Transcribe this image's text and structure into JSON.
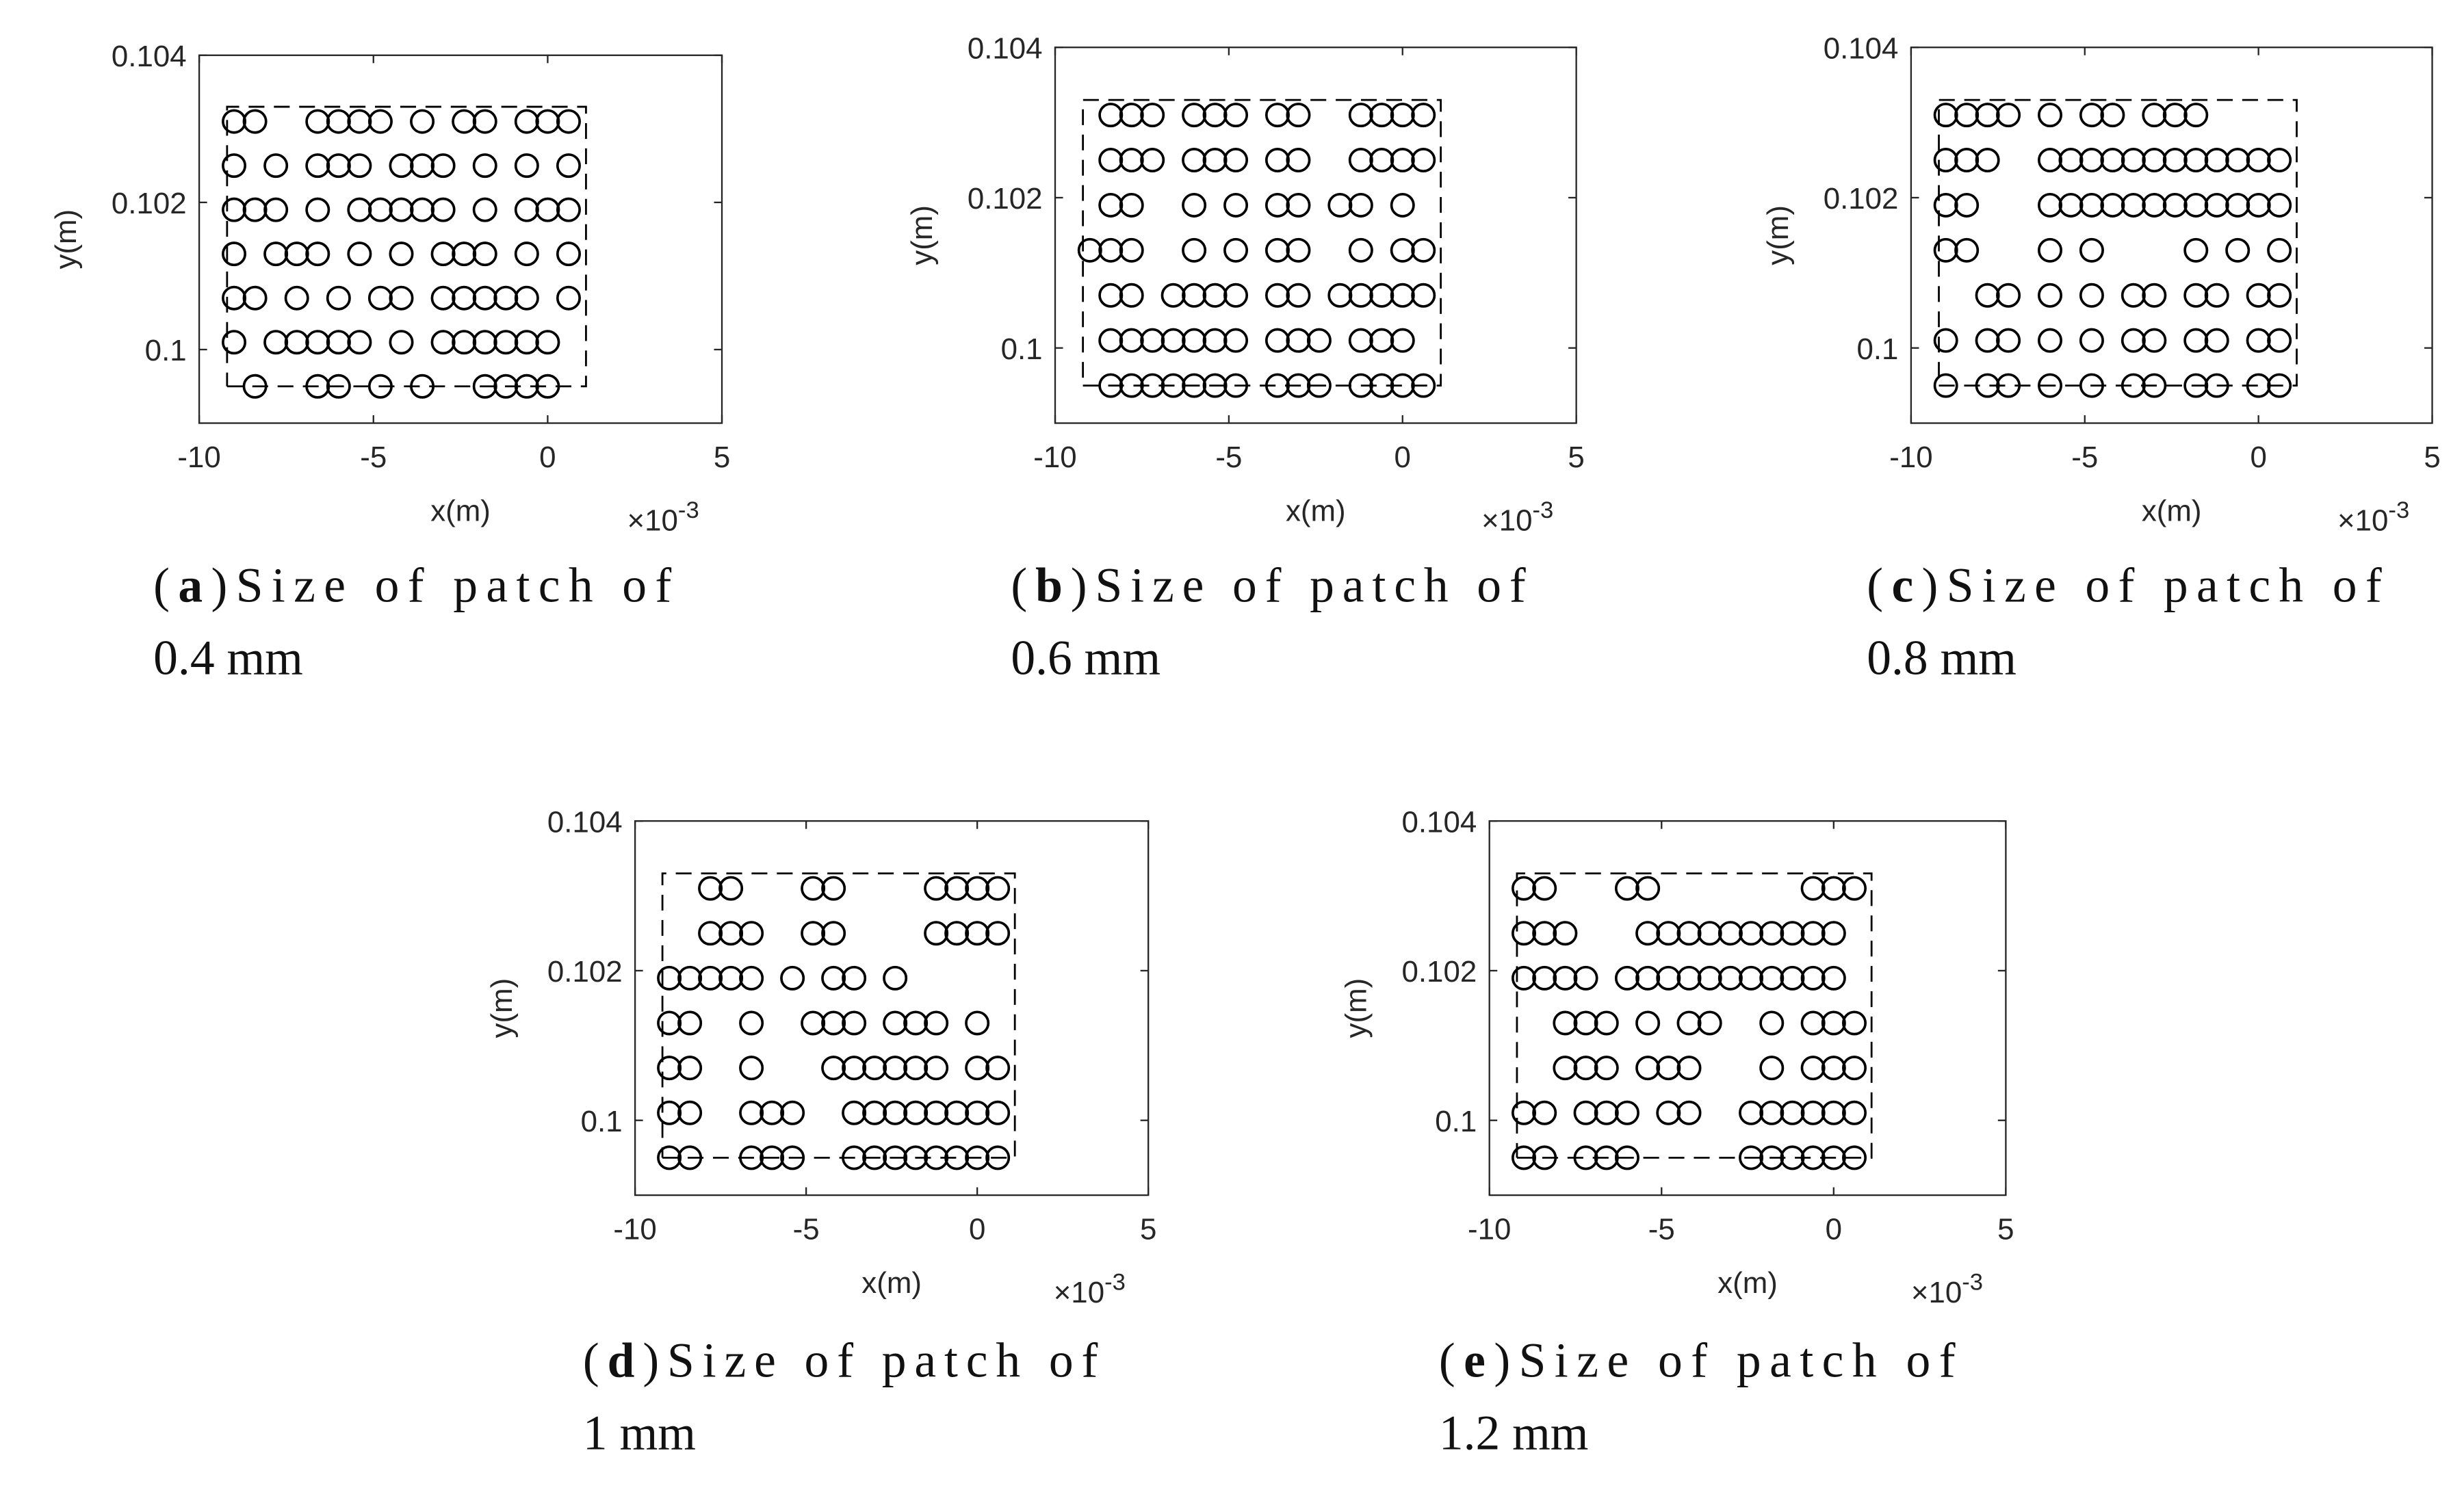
{
  "chart_data": [
    {
      "type": "scatter",
      "xlabel": "x(m)",
      "ylabel": "y(m)",
      "x_multiplier": {
        "base": "×10",
        "exponent": "-3"
      },
      "xlim": [
        -10,
        5
      ],
      "ylim": [
        0.099,
        0.104
      ],
      "xticks": [
        -10,
        -5,
        0,
        5
      ],
      "yticks": [
        0.1,
        0.102,
        0.104
      ],
      "color": "#000000",
      "caption": {
        "open": "(",
        "label": "a",
        "close": ")",
        "lines": [
          "Size of patch of",
          "0.4 mm"
        ]
      },
      "boundary_x": [
        -9.2,
        1.1,
        1.1,
        -9.2,
        -9.2
      ],
      "boundary_y": [
        0.0995,
        0.0995,
        0.1033,
        0.1033,
        0.0995
      ],
      "x": [
        -9,
        -8.4,
        -6.6,
        -6,
        -5.4,
        -4.8,
        -3.6,
        -2.4,
        -1.8,
        -0.6,
        0,
        0.6,
        -9,
        -7.8,
        -6.6,
        -6,
        -5.4,
        -4.2,
        -3.6,
        -3,
        -1.8,
        -0.6,
        0.6,
        -9,
        -8.4,
        -7.8,
        -6.6,
        -5.4,
        -4.8,
        -4.2,
        -3.6,
        -3,
        -1.8,
        -0.6,
        0,
        0.6,
        -9,
        -7.8,
        -7.2,
        -6.6,
        -5.4,
        -4.2,
        -3,
        -2.4,
        -1.8,
        -0.6,
        0.6,
        -9,
        -8.4,
        -7.2,
        -6,
        -4.8,
        -4.2,
        -3,
        -2.4,
        -1.8,
        -1.2,
        -0.6,
        0.6,
        -9,
        -7.8,
        -7.2,
        -6.6,
        -6,
        -5.4,
        -4.2,
        -3,
        -2.4,
        -1.8,
        -1.2,
        -0.6,
        0,
        -8.4,
        -6.6,
        -6,
        -4.8,
        -3.6,
        -1.8,
        -1.2,
        -0.6,
        0
      ],
      "y": [
        0.1031,
        0.1031,
        0.1031,
        0.1031,
        0.1031,
        0.1031,
        0.1031,
        0.1031,
        0.1031,
        0.1031,
        0.1031,
        0.1031,
        0.1025,
        0.1025,
        0.1025,
        0.1025,
        0.1025,
        0.1025,
        0.1025,
        0.1025,
        0.1025,
        0.1025,
        0.1025,
        0.1019,
        0.1019,
        0.1019,
        0.1019,
        0.1019,
        0.1019,
        0.1019,
        0.1019,
        0.1019,
        0.1019,
        0.1019,
        0.1019,
        0.1019,
        0.1013,
        0.1013,
        0.1013,
        0.1013,
        0.1013,
        0.1013,
        0.1013,
        0.1013,
        0.1013,
        0.1013,
        0.1013,
        0.1007,
        0.1007,
        0.1007,
        0.1007,
        0.1007,
        0.1007,
        0.1007,
        0.1007,
        0.1007,
        0.1007,
        0.1007,
        0.1007,
        0.1001,
        0.1001,
        0.1001,
        0.1001,
        0.1001,
        0.1001,
        0.1001,
        0.1001,
        0.1001,
        0.1001,
        0.1001,
        0.1001,
        0.1001,
        0.0995,
        0.0995,
        0.0995,
        0.0995,
        0.0995,
        0.0995,
        0.0995,
        0.0995,
        0.0995
      ]
    },
    {
      "type": "scatter",
      "xlabel": "x(m)",
      "ylabel": "y(m)",
      "x_multiplier": {
        "base": "×10",
        "exponent": "-3"
      },
      "xlim": [
        -10,
        5
      ],
      "ylim": [
        0.099,
        0.104
      ],
      "xticks": [
        -10,
        -5,
        0,
        5
      ],
      "yticks": [
        0.1,
        0.102,
        0.104
      ],
      "color": "#000000",
      "caption": {
        "open": "(",
        "label": "b",
        "close": ")",
        "lines": [
          "Size of patch of",
          "0.6 mm"
        ]
      },
      "boundary_x": [
        -9.2,
        1.1,
        1.1,
        -9.2,
        -9.2
      ],
      "boundary_y": [
        0.0995,
        0.0995,
        0.1033,
        0.1033,
        0.0995
      ],
      "x": [
        -8.4,
        -7.8,
        -7.2,
        -6,
        -5.4,
        -4.8,
        -3.6,
        -3,
        -1.2,
        -0.6,
        0,
        0.6,
        -8.4,
        -7.8,
        -7.2,
        -6,
        -5.4,
        -4.8,
        -3.6,
        -3,
        -1.2,
        -0.6,
        0,
        0.6,
        -8.4,
        -7.8,
        -6,
        -4.8,
        -3.6,
        -3,
        -1.8,
        -1.2,
        0,
        -9,
        -8.4,
        -7.8,
        -6,
        -4.8,
        -3.6,
        -3,
        -1.2,
        0,
        0.6,
        -8.4,
        -7.8,
        -6.6,
        -6,
        -5.4,
        -4.8,
        -3.6,
        -3,
        -1.8,
        -1.2,
        -0.6,
        0,
        0.6,
        -8.4,
        -7.8,
        -7.2,
        -6.6,
        -6,
        -5.4,
        -4.8,
        -3.6,
        -3,
        -2.4,
        -1.2,
        -0.6,
        0,
        -8.4,
        -7.8,
        -7.2,
        -6.6,
        -6,
        -5.4,
        -4.8,
        -3.6,
        -3,
        -2.4,
        -1.2,
        -0.6,
        0,
        0.6
      ],
      "y": [
        0.1031,
        0.1031,
        0.1031,
        0.1031,
        0.1031,
        0.1031,
        0.1031,
        0.1031,
        0.1031,
        0.1031,
        0.1031,
        0.1031,
        0.1025,
        0.1025,
        0.1025,
        0.1025,
        0.1025,
        0.1025,
        0.1025,
        0.1025,
        0.1025,
        0.1025,
        0.1025,
        0.1025,
        0.1019,
        0.1019,
        0.1019,
        0.1019,
        0.1019,
        0.1019,
        0.1019,
        0.1019,
        0.1019,
        0.1013,
        0.1013,
        0.1013,
        0.1013,
        0.1013,
        0.1013,
        0.1013,
        0.1013,
        0.1013,
        0.1013,
        0.1007,
        0.1007,
        0.1007,
        0.1007,
        0.1007,
        0.1007,
        0.1007,
        0.1007,
        0.1007,
        0.1007,
        0.1007,
        0.1007,
        0.1007,
        0.1001,
        0.1001,
        0.1001,
        0.1001,
        0.1001,
        0.1001,
        0.1001,
        0.1001,
        0.1001,
        0.1001,
        0.1001,
        0.1001,
        0.1001,
        0.0995,
        0.0995,
        0.0995,
        0.0995,
        0.0995,
        0.0995,
        0.0995,
        0.0995,
        0.0995,
        0.0995,
        0.0995,
        0.0995,
        0.0995,
        0.0995
      ]
    },
    {
      "type": "scatter",
      "xlabel": "x(m)",
      "ylabel": "y(m)",
      "x_multiplier": {
        "base": "×10",
        "exponent": "-3"
      },
      "xlim": [
        -10,
        5
      ],
      "ylim": [
        0.099,
        0.104
      ],
      "xticks": [
        -10,
        -5,
        0,
        5
      ],
      "yticks": [
        0.1,
        0.102,
        0.104
      ],
      "color": "#000000",
      "caption": {
        "open": "(",
        "label": "c",
        "close": ")",
        "lines": [
          "Size of patch of",
          "0.8 mm"
        ]
      },
      "boundary_x": [
        -9.2,
        1.1,
        1.1,
        -9.2,
        -9.2
      ],
      "boundary_y": [
        0.0995,
        0.0995,
        0.1033,
        0.1033,
        0.0995
      ],
      "x": [
        -9,
        -8.4,
        -7.8,
        -7.2,
        -6,
        -4.8,
        -4.2,
        -3,
        -2.4,
        -1.8,
        -9,
        -8.4,
        -7.8,
        -6,
        -5.4,
        -4.8,
        -4.2,
        -3.6,
        -3,
        -2.4,
        -1.8,
        -1.2,
        -0.6,
        0,
        0.6,
        -9,
        -8.4,
        -6,
        -5.4,
        -4.8,
        -4.2,
        -3.6,
        -3,
        -2.4,
        -1.8,
        -1.2,
        -0.6,
        0,
        0.6,
        -9,
        -8.4,
        -6,
        -4.8,
        -1.8,
        -0.6,
        0.6,
        -7.8,
        -7.2,
        -6,
        -4.8,
        -3.6,
        -3,
        -1.8,
        -1.2,
        0,
        0.6,
        -9,
        -7.8,
        -7.2,
        -6,
        -4.8,
        -3.6,
        -3,
        -1.8,
        -1.2,
        0,
        0.6,
        -9,
        -7.8,
        -7.2,
        -6,
        -4.8,
        -3.6,
        -3,
        -1.8,
        -1.2,
        0,
        0.6
      ],
      "y": [
        0.1031,
        0.1031,
        0.1031,
        0.1031,
        0.1031,
        0.1031,
        0.1031,
        0.1031,
        0.1031,
        0.1031,
        0.1025,
        0.1025,
        0.1025,
        0.1025,
        0.1025,
        0.1025,
        0.1025,
        0.1025,
        0.1025,
        0.1025,
        0.1025,
        0.1025,
        0.1025,
        0.1025,
        0.1025,
        0.1019,
        0.1019,
        0.1019,
        0.1019,
        0.1019,
        0.1019,
        0.1019,
        0.1019,
        0.1019,
        0.1019,
        0.1019,
        0.1019,
        0.1019,
        0.1019,
        0.1013,
        0.1013,
        0.1013,
        0.1013,
        0.1013,
        0.1013,
        0.1013,
        0.1007,
        0.1007,
        0.1007,
        0.1007,
        0.1007,
        0.1007,
        0.1007,
        0.1007,
        0.1007,
        0.1007,
        0.1001,
        0.1001,
        0.1001,
        0.1001,
        0.1001,
        0.1001,
        0.1001,
        0.1001,
        0.1001,
        0.1001,
        0.1001,
        0.0995,
        0.0995,
        0.0995,
        0.0995,
        0.0995,
        0.0995,
        0.0995,
        0.0995,
        0.0995,
        0.0995,
        0.0995
      ]
    },
    {
      "type": "scatter",
      "xlabel": "x(m)",
      "ylabel": "y(m)",
      "x_multiplier": {
        "base": "×10",
        "exponent": "-3"
      },
      "xlim": [
        -10,
        5
      ],
      "ylim": [
        0.099,
        0.104
      ],
      "xticks": [
        -10,
        -5,
        0,
        5
      ],
      "yticks": [
        0.1,
        0.102,
        0.104
      ],
      "color": "#000000",
      "caption": {
        "open": "(",
        "label": "d",
        "close": ")",
        "lines": [
          "Size of patch of",
          "1 mm"
        ]
      },
      "boundary_x": [
        -9.2,
        1.1,
        1.1,
        -9.2,
        -9.2
      ],
      "boundary_y": [
        0.0995,
        0.0995,
        0.1033,
        0.1033,
        0.0995
      ],
      "x": [
        -7.8,
        -7.2,
        -4.8,
        -4.2,
        -1.2,
        -0.6,
        0,
        0.6,
        -7.8,
        -7.2,
        -6.6,
        -4.8,
        -4.2,
        -1.2,
        -0.6,
        0,
        0.6,
        -9,
        -8.4,
        -7.8,
        -7.2,
        -6.6,
        -5.4,
        -4.2,
        -3.6,
        -2.4,
        -9,
        -8.4,
        -6.6,
        -4.8,
        -4.2,
        -3.6,
        -2.4,
        -1.8,
        -1.2,
        0,
        -9,
        -8.4,
        -6.6,
        -4.2,
        -3.6,
        -3,
        -2.4,
        -1.8,
        -1.2,
        0,
        0.6,
        -9,
        -8.4,
        -6.6,
        -6,
        -5.4,
        -3.6,
        -3,
        -2.4,
        -1.8,
        -1.2,
        -0.6,
        0,
        0.6,
        -9,
        -8.4,
        -6.6,
        -6,
        -5.4,
        -3.6,
        -3,
        -2.4,
        -1.8,
        -1.2,
        -0.6,
        0,
        0.6
      ],
      "y": [
        0.1031,
        0.1031,
        0.1031,
        0.1031,
        0.1031,
        0.1031,
        0.1031,
        0.1031,
        0.1025,
        0.1025,
        0.1025,
        0.1025,
        0.1025,
        0.1025,
        0.1025,
        0.1025,
        0.1025,
        0.1019,
        0.1019,
        0.1019,
        0.1019,
        0.1019,
        0.1019,
        0.1019,
        0.1019,
        0.1019,
        0.1013,
        0.1013,
        0.1013,
        0.1013,
        0.1013,
        0.1013,
        0.1013,
        0.1013,
        0.1013,
        0.1013,
        0.1007,
        0.1007,
        0.1007,
        0.1007,
        0.1007,
        0.1007,
        0.1007,
        0.1007,
        0.1007,
        0.1007,
        0.1007,
        0.1001,
        0.1001,
        0.1001,
        0.1001,
        0.1001,
        0.1001,
        0.1001,
        0.1001,
        0.1001,
        0.1001,
        0.1001,
        0.1001,
        0.1001,
        0.0995,
        0.0995,
        0.0995,
        0.0995,
        0.0995,
        0.0995,
        0.0995,
        0.0995,
        0.0995,
        0.0995,
        0.0995,
        0.0995,
        0.0995
      ]
    },
    {
      "type": "scatter",
      "xlabel": "x(m)",
      "ylabel": "y(m)",
      "x_multiplier": {
        "base": "×10",
        "exponent": "-3"
      },
      "xlim": [
        -10,
        5
      ],
      "ylim": [
        0.099,
        0.104
      ],
      "xticks": [
        -10,
        -5,
        0,
        5
      ],
      "yticks": [
        0.1,
        0.102,
        0.104
      ],
      "color": "#000000",
      "caption": {
        "open": "(",
        "label": "e",
        "close": ")",
        "lines": [
          "Size of patch of",
          "1.2 mm"
        ]
      },
      "boundary_x": [
        -9.2,
        1.1,
        1.1,
        -9.2,
        -9.2
      ],
      "boundary_y": [
        0.0995,
        0.0995,
        0.1033,
        0.1033,
        0.0995
      ],
      "x": [
        -9,
        -8.4,
        -6,
        -5.4,
        -0.6,
        0,
        0.6,
        -9,
        -8.4,
        -7.8,
        -5.4,
        -4.8,
        -4.2,
        -3.6,
        -3,
        -2.4,
        -1.8,
        -1.2,
        -0.6,
        0,
        -9,
        -8.4,
        -7.8,
        -7.2,
        -6,
        -5.4,
        -4.8,
        -4.2,
        -3.6,
        -3,
        -2.4,
        -1.8,
        -1.2,
        -0.6,
        0,
        -7.8,
        -7.2,
        -6.6,
        -5.4,
        -4.2,
        -3.6,
        -1.8,
        -0.6,
        0,
        0.6,
        -7.8,
        -7.2,
        -6.6,
        -5.4,
        -4.8,
        -4.2,
        -1.8,
        -0.6,
        0,
        0.6,
        -9,
        -8.4,
        -7.2,
        -6.6,
        -6,
        -4.8,
        -4.2,
        -2.4,
        -1.8,
        -1.2,
        -0.6,
        0,
        0.6,
        -9,
        -8.4,
        -7.2,
        -6.6,
        -6,
        -2.4,
        -1.8,
        -1.2,
        -0.6,
        0,
        0.6
      ],
      "y": [
        0.1031,
        0.1031,
        0.1031,
        0.1031,
        0.1031,
        0.1031,
        0.1031,
        0.1025,
        0.1025,
        0.1025,
        0.1025,
        0.1025,
        0.1025,
        0.1025,
        0.1025,
        0.1025,
        0.1025,
        0.1025,
        0.1025,
        0.1025,
        0.1019,
        0.1019,
        0.1019,
        0.1019,
        0.1019,
        0.1019,
        0.1019,
        0.1019,
        0.1019,
        0.1019,
        0.1019,
        0.1019,
        0.1019,
        0.1019,
        0.1019,
        0.1013,
        0.1013,
        0.1013,
        0.1013,
        0.1013,
        0.1013,
        0.1013,
        0.1013,
        0.1013,
        0.1013,
        0.1007,
        0.1007,
        0.1007,
        0.1007,
        0.1007,
        0.1007,
        0.1007,
        0.1007,
        0.1007,
        0.1007,
        0.1001,
        0.1001,
        0.1001,
        0.1001,
        0.1001,
        0.1001,
        0.1001,
        0.1001,
        0.1001,
        0.1001,
        0.1001,
        0.1001,
        0.1001,
        0.0995,
        0.0995,
        0.0995,
        0.0995,
        0.0995,
        0.0995,
        0.0995,
        0.0995,
        0.0995,
        0.0995,
        0.0995
      ]
    }
  ]
}
